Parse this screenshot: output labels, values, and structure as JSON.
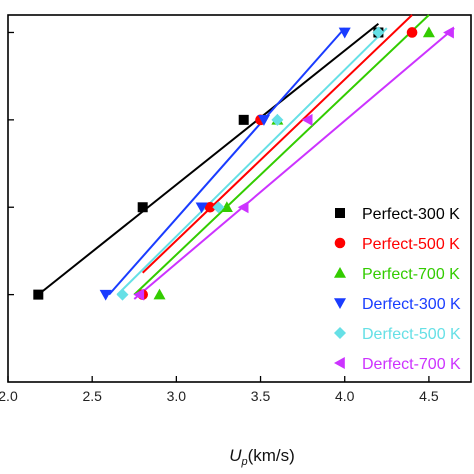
{
  "chart_data": {
    "type": "scatter",
    "xlabel": "U",
    "xlabel_sub": "p",
    "xlabel_unit": "(km/s)",
    "ylabel": "",
    "xlim": [
      2.0,
      4.75
    ],
    "ylim": [
      0.0,
      4.2
    ],
    "x_ticks": [
      2.0,
      2.5,
      3.0,
      3.5,
      4.0,
      4.5
    ],
    "x_tick_labels": [
      "2.0",
      "2.5",
      "3.0",
      "3.5",
      "4.0",
      "4.5"
    ],
    "y_ticks": [
      1,
      2,
      3,
      4
    ],
    "grid": false,
    "legend_position": "right",
    "series": [
      {
        "name": "Perfect-300 K",
        "color": "#000000",
        "marker": "square",
        "points": [
          [
            2.18,
            1
          ],
          [
            2.8,
            2
          ],
          [
            3.4,
            3
          ],
          [
            4.2,
            4
          ]
        ],
        "fit": [
          [
            2.18,
            1
          ],
          [
            4.2,
            4.1
          ]
        ]
      },
      {
        "name": "Perfect-500 K",
        "color": "#ff0000",
        "marker": "circle",
        "points": [
          [
            2.8,
            1
          ],
          [
            3.2,
            2
          ],
          [
            3.5,
            3
          ],
          [
            4.4,
            4
          ]
        ],
        "fit": [
          [
            2.8,
            1.25
          ],
          [
            4.4,
            4.2
          ]
        ]
      },
      {
        "name": "Perfect-700 K",
        "color": "#33cc00",
        "marker": "triangle-up",
        "points": [
          [
            2.9,
            1
          ],
          [
            3.3,
            2
          ],
          [
            3.6,
            3
          ],
          [
            4.5,
            4
          ]
        ],
        "fit": [
          [
            2.75,
            1.0
          ],
          [
            4.5,
            4.2
          ]
        ]
      },
      {
        "name": "Derfect-300 K",
        "color": "#1a3cff",
        "marker": "triangle-down",
        "points": [
          [
            2.58,
            1
          ],
          [
            3.15,
            2
          ],
          [
            3.52,
            3
          ],
          [
            4.0,
            4
          ]
        ],
        "fit": [
          [
            2.6,
            1.0
          ],
          [
            4.0,
            4.05
          ]
        ]
      },
      {
        "name": "Derfect-500 K",
        "color": "#66e0e6",
        "marker": "diamond",
        "points": [
          [
            2.68,
            1
          ],
          [
            3.25,
            2
          ],
          [
            3.6,
            3
          ],
          [
            4.2,
            4
          ]
        ],
        "fit": [
          [
            2.65,
            1.0
          ],
          [
            4.25,
            4.05
          ]
        ]
      },
      {
        "name": "Derfect-700 K",
        "color": "#cc33ff",
        "marker": "triangle-left",
        "points": [
          [
            2.78,
            1
          ],
          [
            3.4,
            2
          ],
          [
            3.78,
            3
          ],
          [
            4.62,
            4
          ]
        ],
        "fit": [
          [
            2.75,
            0.95
          ],
          [
            4.65,
            4.05
          ]
        ]
      }
    ]
  }
}
